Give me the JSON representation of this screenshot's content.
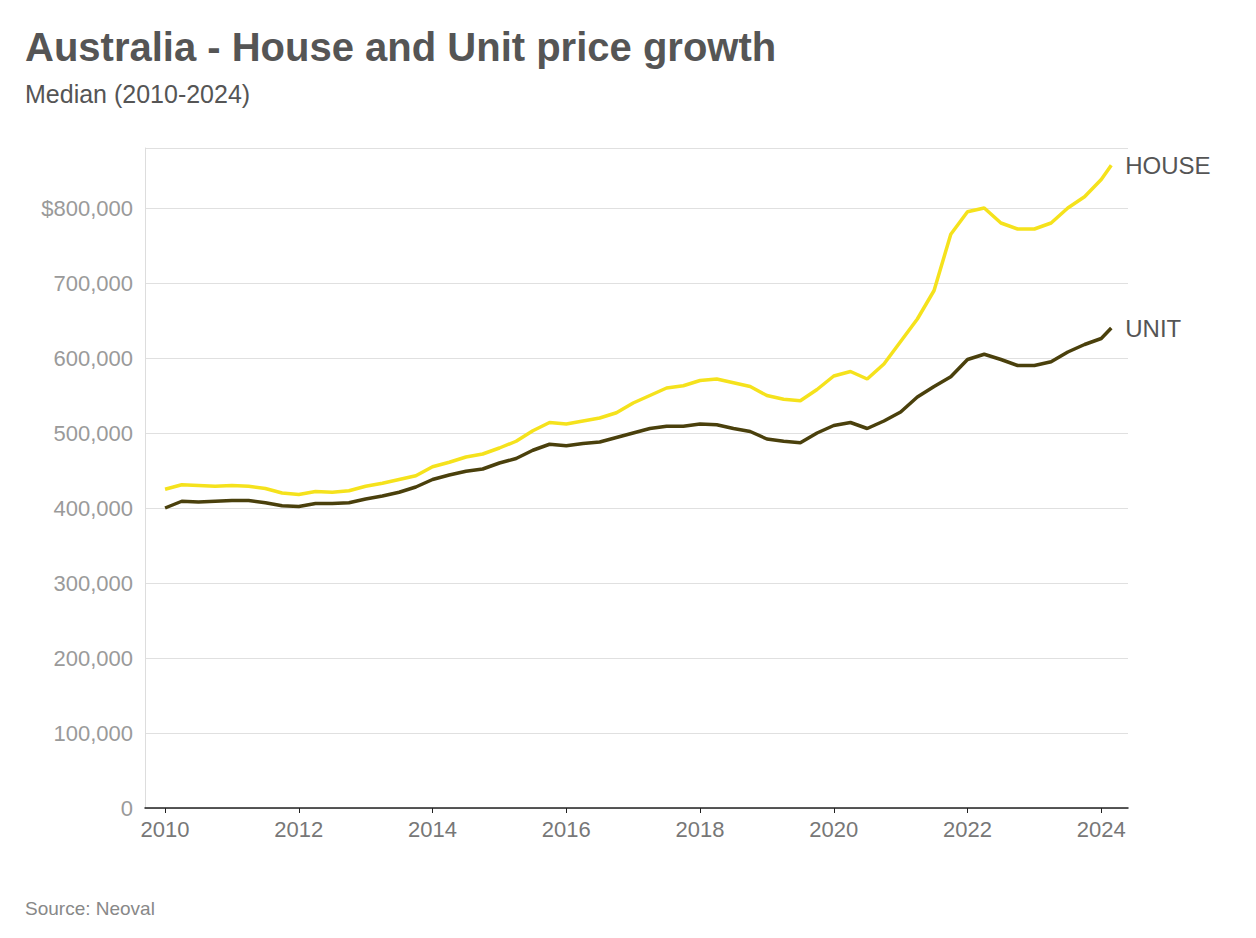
{
  "chart_data": {
    "type": "line",
    "title": "Australia - House and Unit price growth",
    "subtitle": "Median (2010-2024)",
    "source": "Source: Neoval",
    "x": [
      2010,
      2010.25,
      2010.5,
      2010.75,
      2011,
      2011.25,
      2011.5,
      2011.75,
      2012,
      2012.25,
      2012.5,
      2012.75,
      2013,
      2013.25,
      2013.5,
      2013.75,
      2014,
      2014.25,
      2014.5,
      2014.75,
      2015,
      2015.25,
      2015.5,
      2015.75,
      2016,
      2016.25,
      2016.5,
      2016.75,
      2017,
      2017.25,
      2017.5,
      2017.75,
      2018,
      2018.25,
      2018.5,
      2018.75,
      2019,
      2019.25,
      2019.5,
      2019.75,
      2020,
      2020.25,
      2020.5,
      2020.75,
      2021,
      2021.25,
      2021.5,
      2021.75,
      2022,
      2022.25,
      2022.5,
      2022.75,
      2023,
      2023.25,
      2023.5,
      2023.75,
      2024,
      2024.15
    ],
    "series": [
      {
        "name": "HOUSE",
        "color": "#f5e21c",
        "values": [
          425000,
          431000,
          430000,
          429000,
          430000,
          429000,
          426000,
          420000,
          418000,
          422000,
          421000,
          423000,
          429000,
          433000,
          438000,
          443000,
          455000,
          461000,
          468000,
          472000,
          480000,
          489000,
          503000,
          514000,
          512000,
          516000,
          520000,
          527000,
          540000,
          550000,
          560000,
          563000,
          570000,
          572000,
          567000,
          562000,
          550000,
          545000,
          543000,
          558000,
          576000,
          582000,
          572000,
          592000,
          622000,
          652000,
          690000,
          765000,
          795000,
          800000,
          780000,
          772000,
          772000,
          780000,
          800000,
          815000,
          838000,
          857000
        ]
      },
      {
        "name": "UNIT",
        "color": "#4a400c",
        "values": [
          400000,
          409000,
          408000,
          409000,
          410000,
          410000,
          407000,
          403000,
          402000,
          406000,
          406000,
          407000,
          412000,
          416000,
          421000,
          428000,
          438000,
          444000,
          449000,
          452000,
          460000,
          466000,
          477000,
          485000,
          483000,
          486000,
          488000,
          494000,
          500000,
          506000,
          509000,
          509000,
          512000,
          511000,
          506000,
          502000,
          492000,
          489000,
          487000,
          500000,
          510000,
          514000,
          506000,
          516000,
          528000,
          548000,
          562000,
          575000,
          598000,
          605000,
          598000,
          590000,
          590000,
          595000,
          608000,
          618000,
          626000,
          640000
        ]
      }
    ],
    "xlim": [
      2009.7,
      2024.4
    ],
    "xticks": [
      2010,
      2012,
      2014,
      2016,
      2018,
      2020,
      2022,
      2024
    ],
    "ylim": [
      0,
      880000
    ],
    "yticks": [
      0,
      {
        "value": 100000,
        "label": "100,000"
      },
      {
        "value": 200000,
        "label": "200,000"
      },
      {
        "value": 300000,
        "label": "300,000"
      },
      {
        "value": 400000,
        "label": "400,000"
      },
      {
        "value": 500000,
        "label": "500,000"
      },
      {
        "value": 600000,
        "label": "600,000"
      },
      {
        "value": 700000,
        "label": "700,000"
      },
      {
        "value": 800000,
        "label": "$800,000"
      }
    ],
    "grid": true
  }
}
